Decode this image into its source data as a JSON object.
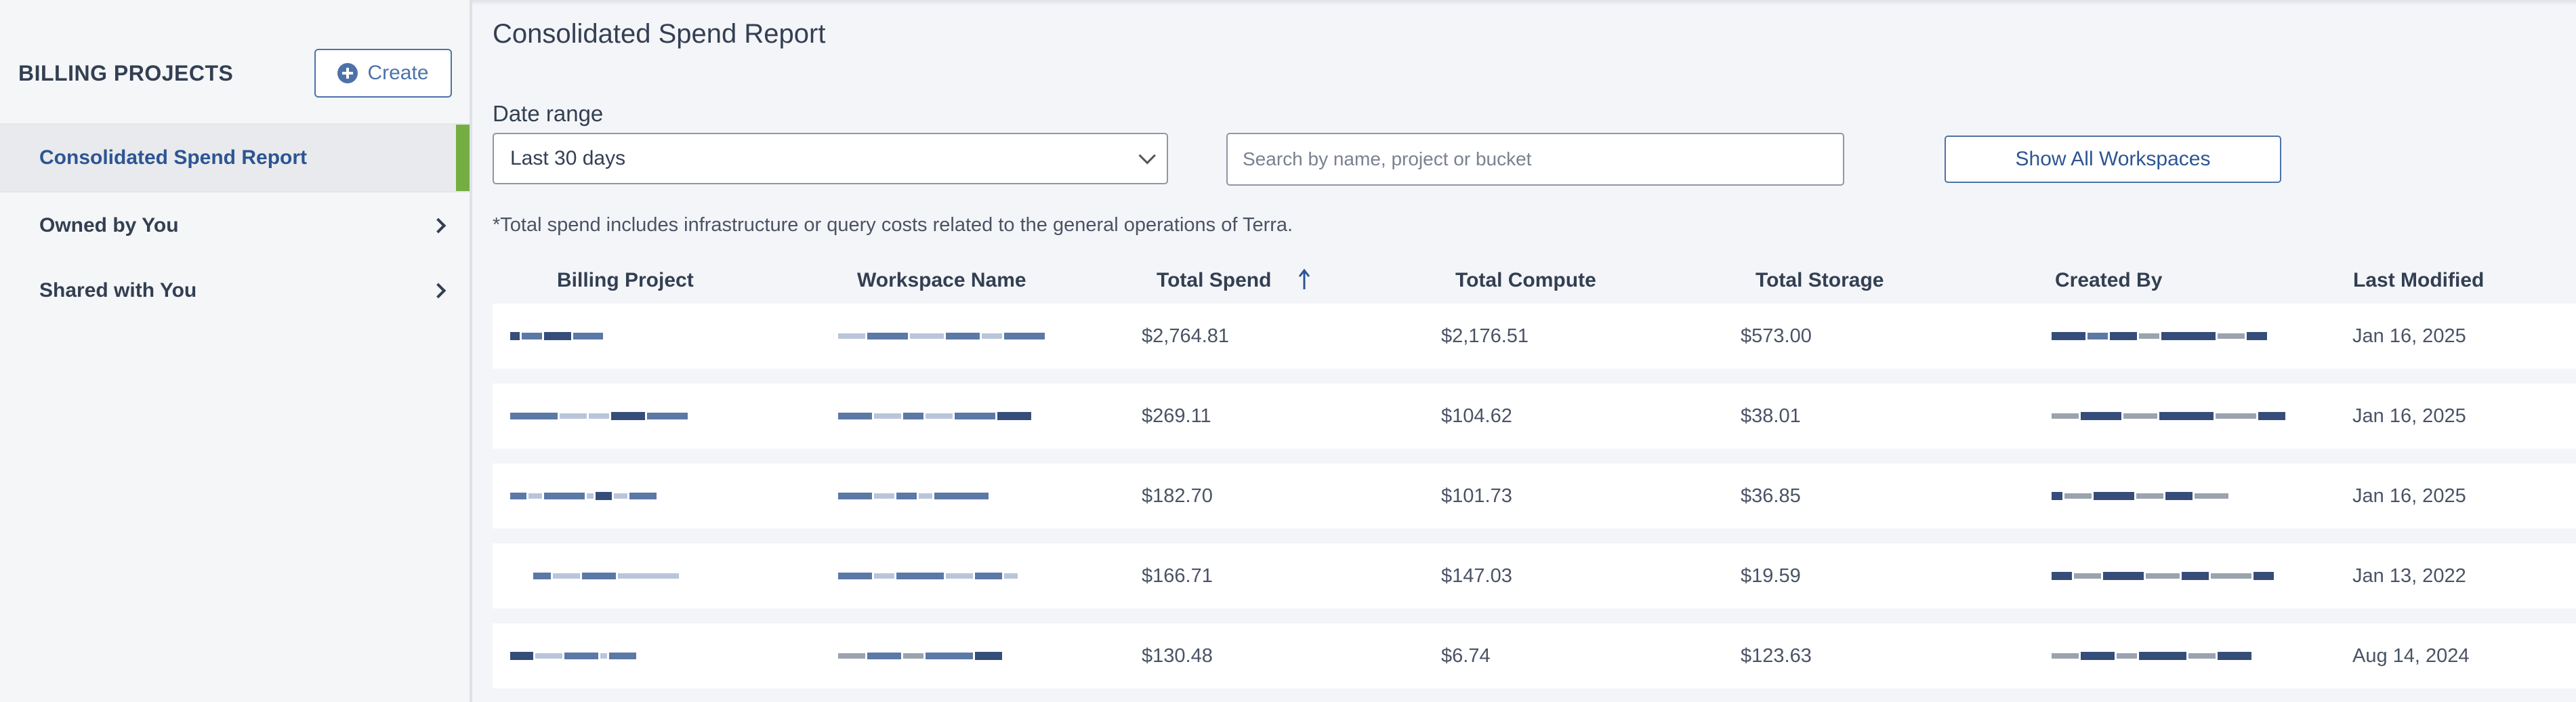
{
  "sidebar": {
    "title": "BILLING PROJECTS",
    "create_label": "Create",
    "items": [
      {
        "label": "Consolidated Spend Report"
      },
      {
        "label": "Owned by You"
      },
      {
        "label": "Shared with You"
      }
    ]
  },
  "main": {
    "title": "Consolidated Spend Report",
    "date_range_label": "Date range",
    "date_range_value": "Last 30 days",
    "search_placeholder": "Search by name, project or bucket",
    "show_all_label": "Show All Workspaces",
    "note": "*Total spend includes infrastructure or query costs related to the general operations of Terra."
  },
  "table": {
    "headers": [
      "Billing Project",
      "Workspace Name",
      "Total Spend",
      "Total Compute",
      "Total Storage",
      "Created By",
      "Last Modified"
    ],
    "sorted_column": "Total Spend",
    "sort_direction": "ascending-arrow",
    "rows": [
      {
        "total_spend": "$2,764.81",
        "total_compute": "$2,176.51",
        "total_storage": "$573.00",
        "last_modified": "Jan 16, 2025"
      },
      {
        "total_spend": "$269.11",
        "total_compute": "$104.62",
        "total_storage": "$38.01",
        "last_modified": "Jan 16, 2025"
      },
      {
        "total_spend": "$182.70",
        "total_compute": "$101.73",
        "total_storage": "$36.85",
        "last_modified": "Jan 16, 2025"
      },
      {
        "total_spend": "$166.71",
        "total_compute": "$147.03",
        "total_storage": "$19.59",
        "last_modified": "Jan 13, 2022"
      },
      {
        "total_spend": "$130.48",
        "total_compute": "$6.74",
        "total_storage": "$123.63",
        "last_modified": "Aug 14, 2024"
      }
    ]
  },
  "colors": {
    "accent": "#4d72aa",
    "active_indicator": "#74ae43",
    "text": "#333f52"
  }
}
